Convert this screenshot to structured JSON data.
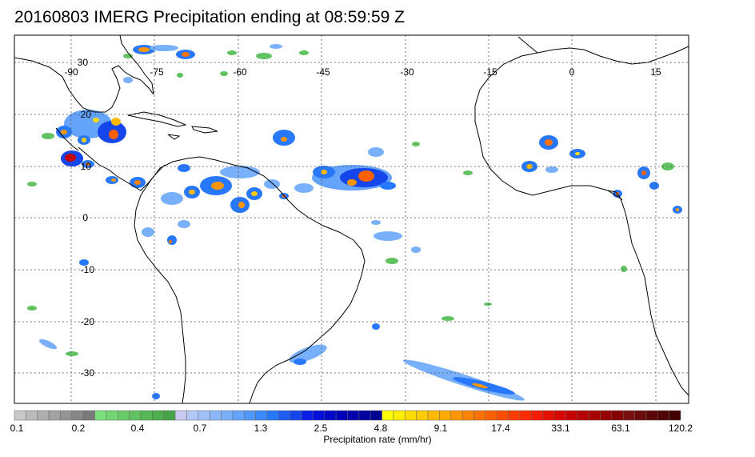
{
  "title": "20160803 IMERG Precipitation ending at 08:59:59 Z",
  "map": {
    "lon_labels": [
      "-90",
      "-75",
      "-60",
      "-45",
      "-30",
      "-15",
      "0",
      "15"
    ],
    "lat_labels": [
      "30",
      "20",
      "10",
      "0",
      "-10",
      "-20",
      "-30"
    ],
    "lon_values": [
      -90,
      -75,
      -60,
      -45,
      -30,
      -15,
      0,
      15
    ],
    "lat_values": [
      30,
      20,
      10,
      0,
      -10,
      -20,
      -30
    ],
    "extent": {
      "lon_min": -98,
      "lon_max": 20,
      "lat_min": -36,
      "lat_max": 34
    },
    "land_color": "#000000",
    "grid": true
  },
  "colorbar": {
    "label": "Precipitation rate (mm/hr)",
    "tick_labels": [
      "0.1",
      "0.2",
      "0.4",
      "0.7",
      "1.3",
      "2.5",
      "4.8",
      "9.1",
      "17.4",
      "33.1",
      "63.1",
      "120.2"
    ],
    "colors": [
      "#c8c8c8",
      "#bbbbbb",
      "#aeaeae",
      "#a1a1a1",
      "#949494",
      "#878787",
      "#7a7a7a",
      "#7be07b",
      "#72d672",
      "#69cc69",
      "#60c260",
      "#57b857",
      "#4eae4e",
      "#45a445",
      "#c8c8f0",
      "#b4c8f5",
      "#a0c0f8",
      "#8cb8fa",
      "#78b0fc",
      "#64a4fd",
      "#5098fe",
      "#3c88ff",
      "#2878ff",
      "#1e5cf5",
      "#1446eb",
      "#0a1ee6",
      "#0010d8",
      "#0008c8",
      "#0000bb",
      "#0000ad",
      "#00009f",
      "#000090",
      "#ffff00",
      "#ffee00",
      "#ffdc00",
      "#ffcc00",
      "#ffba00",
      "#ffa800",
      "#ff9600",
      "#ff8400",
      "#ff7200",
      "#ff6000",
      "#ff4e00",
      "#ff3c00",
      "#ff2a00",
      "#f51a00",
      "#e61000",
      "#d70800",
      "#c80000",
      "#b80000",
      "#a80000",
      "#980000",
      "#880000",
      "#781010",
      "#6a0c0c",
      "#5c0808",
      "#500404",
      "#440000"
    ]
  }
}
